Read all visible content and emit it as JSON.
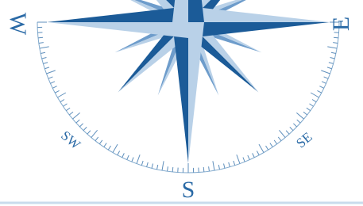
{
  "labels": {
    "west": "W",
    "east": "E",
    "south": "S",
    "southwest": "SW",
    "southeast": "SE"
  }
}
